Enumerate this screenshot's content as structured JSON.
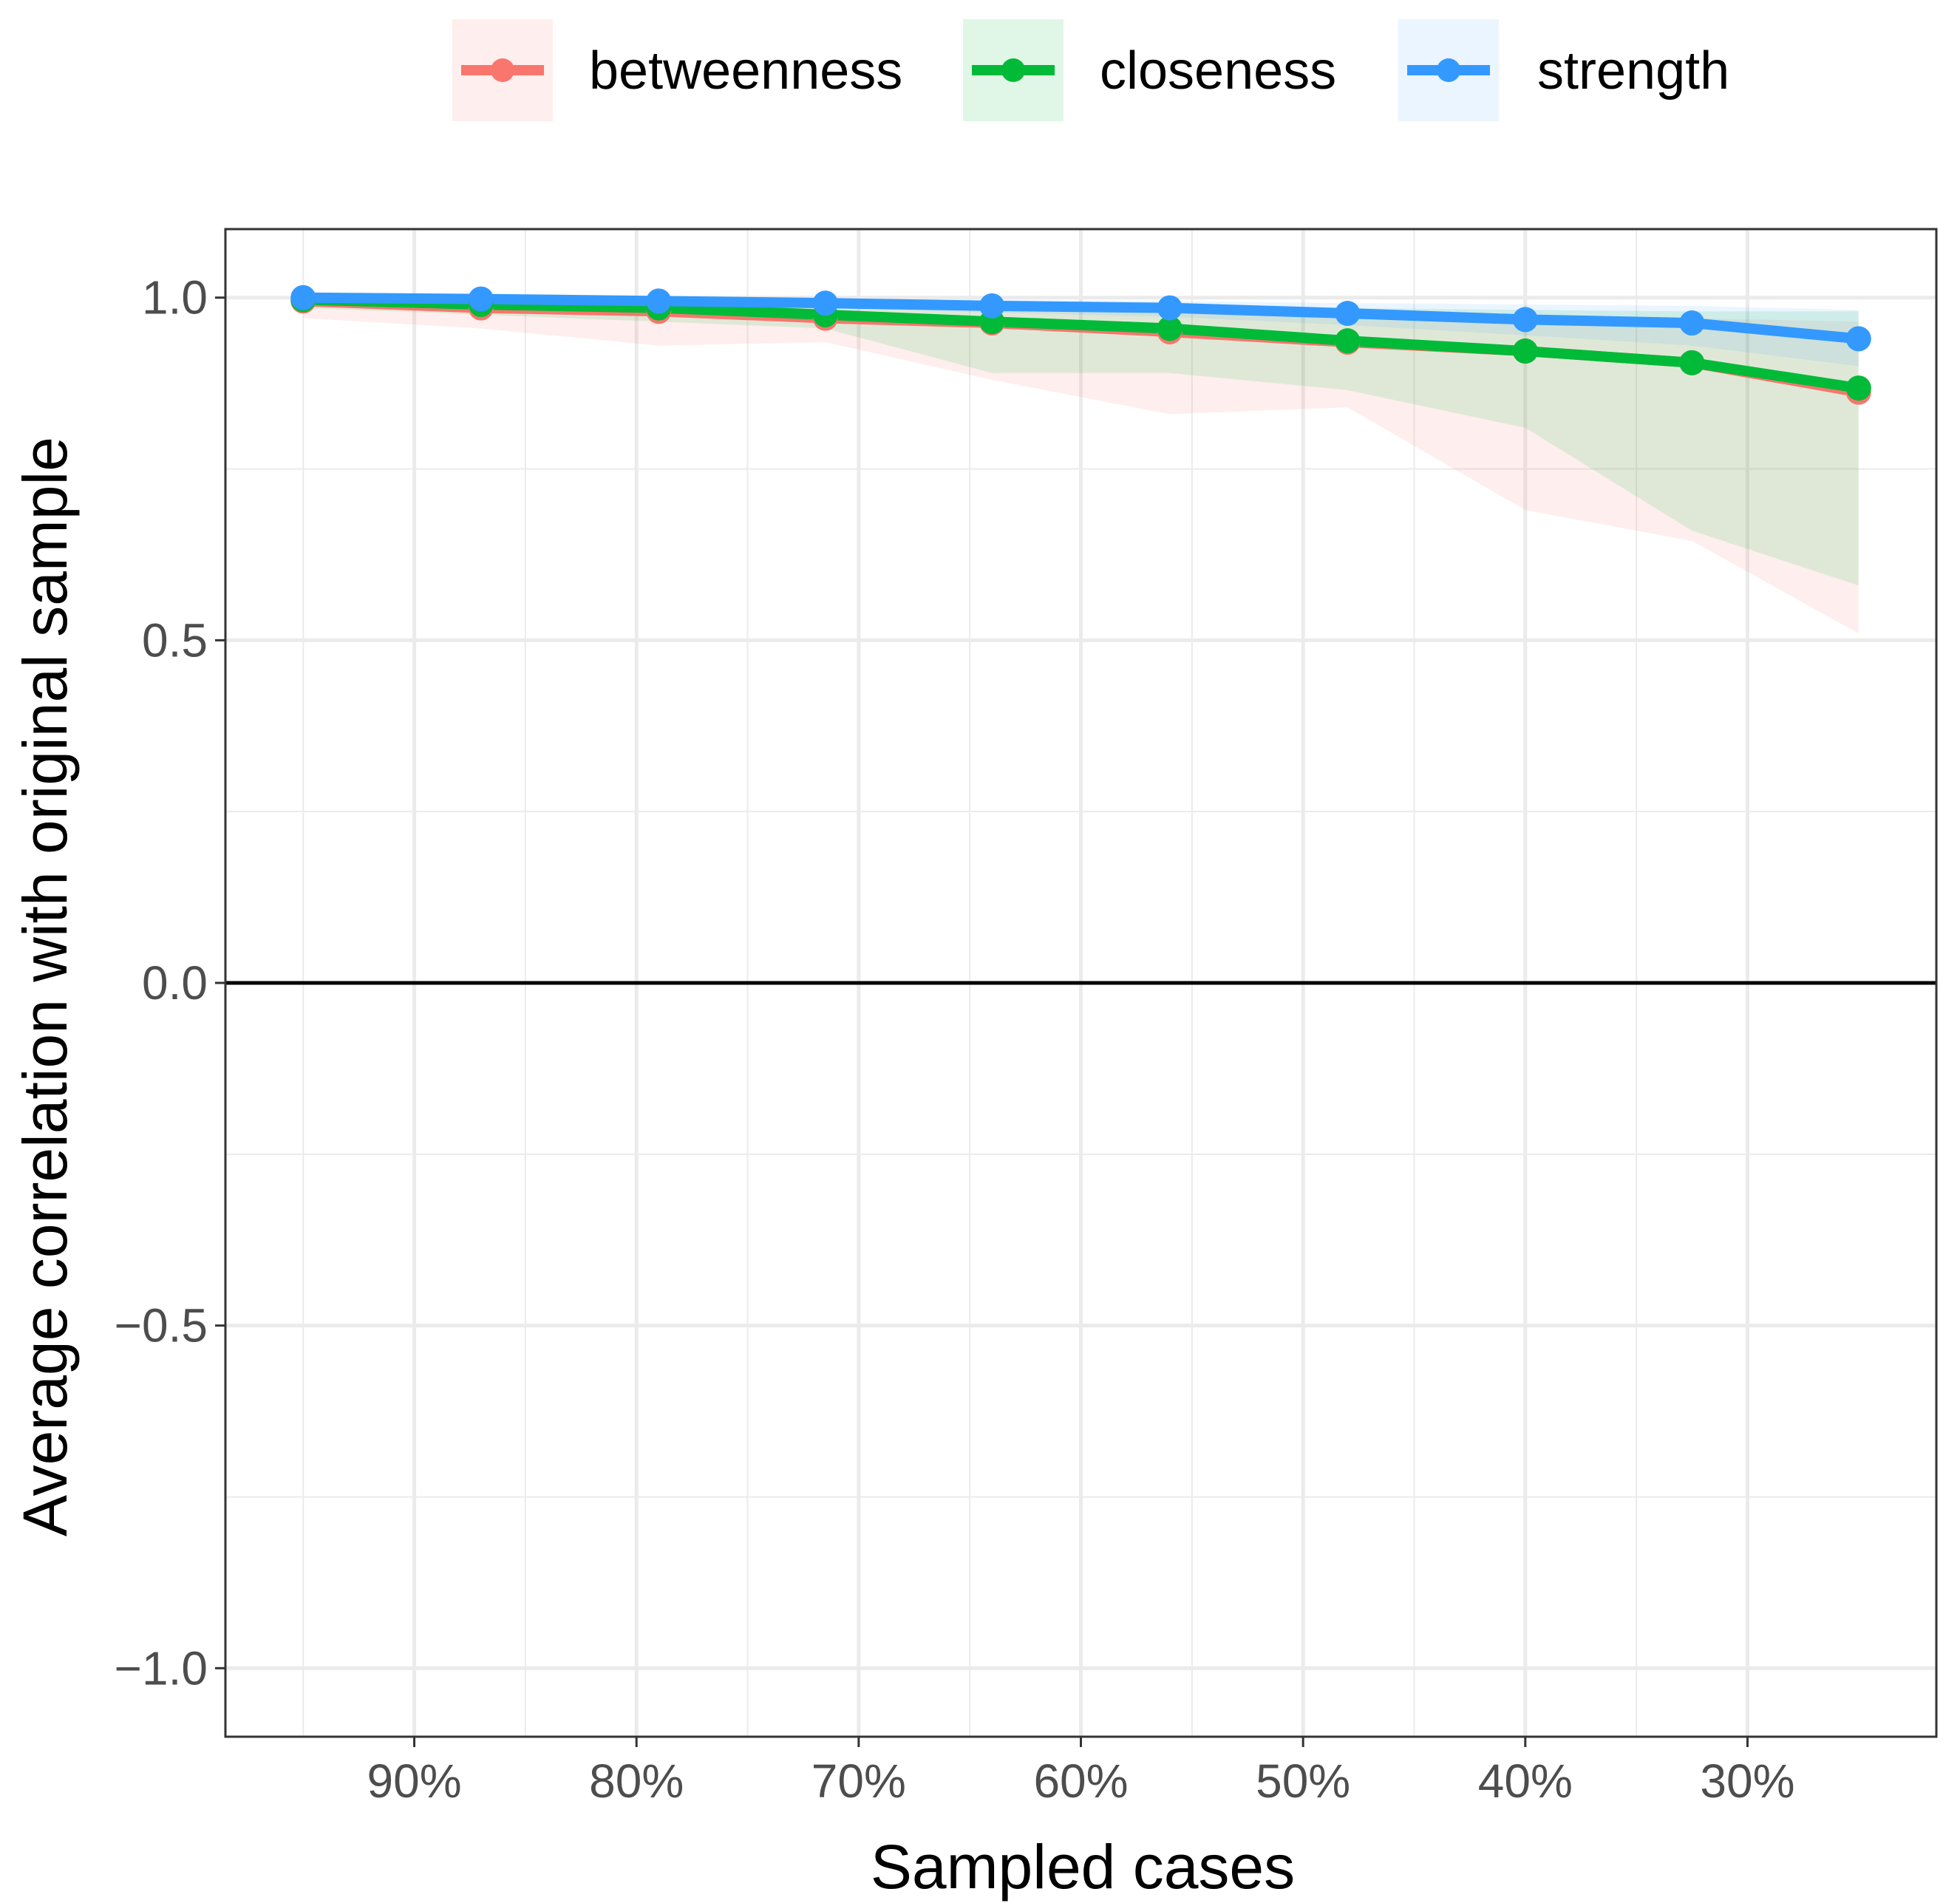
{
  "chart_data": {
    "type": "line",
    "title": "",
    "xlabel": "Sampled cases",
    "ylabel": "Average correlation with original sample",
    "x": [
      95,
      87,
      79,
      71.5,
      64,
      56,
      48,
      40,
      32.5,
      25
    ],
    "xlim": [
      98.5,
      21.5
    ],
    "x_ticks": [
      90,
      80,
      70,
      60,
      50,
      40,
      30
    ],
    "x_tick_labels": [
      "90%",
      "80%",
      "70%",
      "60%",
      "50%",
      "40%",
      "30%"
    ],
    "ylim": [
      -1.1,
      1.1
    ],
    "y_ticks": [
      1.0,
      0.5,
      0.0,
      -0.5,
      -1.0
    ],
    "y_tick_labels": [
      "1.0",
      "0.5",
      "0.0",
      "−0.5",
      "−1.0"
    ],
    "hline": 0,
    "grid": true,
    "legend_position": "top",
    "series": [
      {
        "name": "betweenness",
        "color": "#F8766D",
        "values": [
          0.995,
          0.985,
          0.98,
          0.97,
          0.963,
          0.95,
          0.935,
          0.922,
          0.905,
          0.862
        ],
        "band_lower": [
          0.97,
          0.955,
          0.93,
          0.935,
          0.88,
          0.83,
          0.84,
          0.69,
          0.645,
          0.51
        ],
        "band_upper": [
          1.0,
          0.998,
          0.995,
          0.995,
          0.99,
          0.985,
          0.98,
          0.975,
          0.97,
          0.965
        ]
      },
      {
        "name": "closeness",
        "color": "#00BA38",
        "values": [
          0.997,
          0.99,
          0.985,
          0.975,
          0.965,
          0.955,
          0.937,
          0.922,
          0.905,
          0.868
        ],
        "band_lower": [
          0.985,
          0.975,
          0.965,
          0.955,
          0.89,
          0.89,
          0.865,
          0.81,
          0.66,
          0.58
        ],
        "band_upper": [
          1.0,
          0.999,
          0.998,
          0.996,
          0.993,
          0.99,
          0.985,
          0.982,
          0.98,
          0.98
        ]
      },
      {
        "name": "strength",
        "color": "#3399FF",
        "values": [
          1.0,
          0.998,
          0.995,
          0.992,
          0.988,
          0.985,
          0.977,
          0.968,
          0.963,
          0.94
        ],
        "band_lower": [
          0.998,
          0.995,
          0.99,
          0.985,
          0.978,
          0.972,
          0.96,
          0.945,
          0.93,
          0.9
        ],
        "band_upper": [
          1.0,
          1.0,
          0.999,
          0.998,
          0.997,
          0.995,
          0.992,
          0.99,
          0.988,
          0.982
        ]
      }
    ]
  }
}
